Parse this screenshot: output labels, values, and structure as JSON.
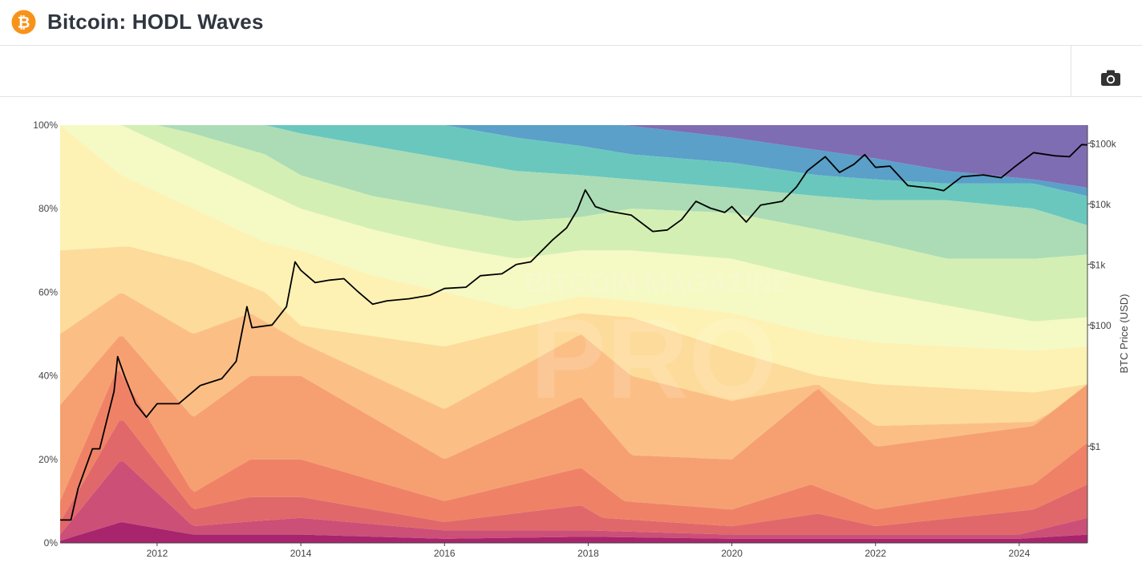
{
  "header": {
    "title": "Bitcoin: HODL Waves"
  },
  "toolbar": {
    "camera_icon": "camera-icon"
  },
  "colors": {
    "purple": "#7f6db4",
    "blue": "#5aa0c8",
    "teal": "#6ac7be",
    "seafoam": "#abdcb5",
    "lightgreen": "#d4efb3",
    "paleyellow": "#f5f9c4",
    "lightyellow": "#fdf2b4",
    "peach": "#fddb9a",
    "lightorange": "#fbbf86",
    "orange": "#f6a072",
    "salmon": "#ef8266",
    "red": "#e0686a",
    "pink": "#cc4f77",
    "magenta": "#a8246d",
    "price_line": "#000000"
  },
  "watermark": {
    "text_top": "BITCOIN MAGAZINE",
    "text_bottom": "PRO"
  },
  "chart_data": {
    "type": "area",
    "title": "Bitcoin: HODL Waves",
    "x_range": [
      2010.65,
      2024.95
    ],
    "y_left": {
      "range": [
        0,
        100
      ],
      "unit": "%"
    },
    "y_right": {
      "label": "BTC Price (USD)",
      "scale": "log",
      "range_log10": [
        -1.6,
        5.3
      ]
    },
    "x_ticks": [
      {
        "value": 2012,
        "label": "2012"
      },
      {
        "value": 2014,
        "label": "2014"
      },
      {
        "value": 2016,
        "label": "2016"
      },
      {
        "value": 2018,
        "label": "2018"
      },
      {
        "value": 2020,
        "label": "2020"
      },
      {
        "value": 2022,
        "label": "2022"
      },
      {
        "value": 2024,
        "label": "2024"
      }
    ],
    "y_left_ticks": [
      {
        "value": 0,
        "label": "0%"
      },
      {
        "value": 20,
        "label": "20%"
      },
      {
        "value": 40,
        "label": "40%"
      },
      {
        "value": 60,
        "label": "60%"
      },
      {
        "value": 80,
        "label": "80%"
      },
      {
        "value": 100,
        "label": "100%"
      }
    ],
    "y_right_ticks": [
      {
        "value": 1,
        "label": "$1"
      },
      {
        "value": 100,
        "label": "$100"
      },
      {
        "value": 1000,
        "label": "$1k"
      },
      {
        "value": 10000,
        "label": "$10k"
      },
      {
        "value": 100000,
        "label": "$100k"
      }
    ],
    "band_order_bottom_to_top": [
      "magenta",
      "pink",
      "red",
      "salmon",
      "orange",
      "lightorange",
      "peach",
      "lightyellow",
      "paleyellow",
      "lightgreen",
      "seafoam",
      "teal",
      "blue",
      "purple"
    ],
    "boundaries": [
      {
        "band": "magenta",
        "points": [
          [
            2010.65,
            0.5
          ],
          [
            2011.5,
            5
          ],
          [
            2012.5,
            2
          ],
          [
            2014,
            2
          ],
          [
            2016,
            1
          ],
          [
            2018,
            1.5
          ],
          [
            2020,
            1
          ],
          [
            2022,
            1
          ],
          [
            2024,
            1
          ],
          [
            2024.95,
            2
          ]
        ]
      },
      {
        "band": "pink",
        "points": [
          [
            2010.65,
            2
          ],
          [
            2011.5,
            20
          ],
          [
            2012.5,
            4
          ],
          [
            2013.2,
            5
          ],
          [
            2014,
            6
          ],
          [
            2016,
            3
          ],
          [
            2018,
            3
          ],
          [
            2020,
            2
          ],
          [
            2022,
            2
          ],
          [
            2024,
            2
          ],
          [
            2024.95,
            6
          ]
        ]
      },
      {
        "band": "red",
        "points": [
          [
            2010.65,
            5
          ],
          [
            2011.5,
            30
          ],
          [
            2012.5,
            8
          ],
          [
            2013.3,
            11
          ],
          [
            2014,
            11
          ],
          [
            2016,
            5
          ],
          [
            2017.9,
            9
          ],
          [
            2018.2,
            6
          ],
          [
            2020,
            4
          ],
          [
            2021.2,
            7
          ],
          [
            2022,
            4
          ],
          [
            2024.2,
            8
          ],
          [
            2024.95,
            14
          ]
        ]
      },
      {
        "band": "salmon",
        "points": [
          [
            2010.65,
            10
          ],
          [
            2011.45,
            42
          ],
          [
            2012.5,
            12
          ],
          [
            2013.3,
            20
          ],
          [
            2014,
            20
          ],
          [
            2016,
            10
          ],
          [
            2017.9,
            18
          ],
          [
            2018.5,
            10
          ],
          [
            2020,
            8
          ],
          [
            2021.1,
            14
          ],
          [
            2022,
            8
          ],
          [
            2024.2,
            14
          ],
          [
            2024.95,
            24
          ]
        ]
      },
      {
        "band": "orange",
        "points": [
          [
            2010.65,
            33
          ],
          [
            2011.5,
            50
          ],
          [
            2012.5,
            30
          ],
          [
            2013.3,
            40
          ],
          [
            2014,
            40
          ],
          [
            2016,
            20
          ],
          [
            2017.9,
            35
          ],
          [
            2018.6,
            21
          ],
          [
            2020,
            20
          ],
          [
            2021.2,
            37
          ],
          [
            2022,
            23
          ],
          [
            2024.2,
            28
          ],
          [
            2024.95,
            38
          ]
        ]
      },
      {
        "band": "lightorange",
        "points": [
          [
            2010.65,
            50
          ],
          [
            2011.5,
            60
          ],
          [
            2012.5,
            50
          ],
          [
            2013.3,
            55
          ],
          [
            2014,
            48
          ],
          [
            2016,
            32
          ],
          [
            2017.9,
            50
          ],
          [
            2018.6,
            40
          ],
          [
            2020,
            34
          ],
          [
            2021.2,
            38
          ],
          [
            2022,
            28
          ],
          [
            2024.2,
            29
          ],
          [
            2024.95,
            36
          ]
        ]
      },
      {
        "band": "peach",
        "points": [
          [
            2010.65,
            70
          ],
          [
            2011.6,
            71
          ],
          [
            2012.5,
            67
          ],
          [
            2013.5,
            60
          ],
          [
            2014,
            52
          ],
          [
            2016,
            47
          ],
          [
            2017.9,
            55
          ],
          [
            2018.6,
            54
          ],
          [
            2020,
            46
          ],
          [
            2021.2,
            40
          ],
          [
            2022,
            38
          ],
          [
            2024.2,
            36
          ],
          [
            2024.95,
            38
          ]
        ]
      },
      {
        "band": "lightyellow",
        "points": [
          [
            2010.65,
            100
          ],
          [
            2011.5,
            88
          ],
          [
            2012.5,
            80
          ],
          [
            2013.5,
            72
          ],
          [
            2014,
            70
          ],
          [
            2015,
            64
          ],
          [
            2016,
            60
          ],
          [
            2017,
            56
          ],
          [
            2017.9,
            59
          ],
          [
            2018.6,
            58
          ],
          [
            2020,
            55
          ],
          [
            2021.2,
            50
          ],
          [
            2022,
            48
          ],
          [
            2024.2,
            46
          ],
          [
            2024.95,
            47
          ]
        ]
      },
      {
        "band": "paleyellow",
        "points": [
          [
            2010.65,
            100
          ],
          [
            2011.5,
            100
          ],
          [
            2012.5,
            92
          ],
          [
            2013.5,
            84
          ],
          [
            2014,
            80
          ],
          [
            2015,
            75
          ],
          [
            2016,
            71
          ],
          [
            2017,
            68
          ],
          [
            2017.9,
            70
          ],
          [
            2018.6,
            70
          ],
          [
            2020,
            68
          ],
          [
            2021.2,
            63
          ],
          [
            2022,
            60
          ],
          [
            2024.2,
            53
          ],
          [
            2024.95,
            54
          ]
        ]
      },
      {
        "band": "lightgreen",
        "points": [
          [
            2010.65,
            100
          ],
          [
            2011.5,
            100
          ],
          [
            2012,
            100
          ],
          [
            2012.5,
            98
          ],
          [
            2013.5,
            93
          ],
          [
            2014,
            88
          ],
          [
            2015,
            83
          ],
          [
            2016,
            80
          ],
          [
            2017,
            77
          ],
          [
            2017.9,
            78
          ],
          [
            2018.6,
            80
          ],
          [
            2020,
            79
          ],
          [
            2021.2,
            75
          ],
          [
            2022,
            72
          ],
          [
            2023,
            68
          ],
          [
            2024.2,
            68
          ],
          [
            2024.95,
            69
          ]
        ]
      },
      {
        "band": "seafoam",
        "points": [
          [
            2010.65,
            100
          ],
          [
            2012,
            100
          ],
          [
            2013.5,
            100
          ],
          [
            2014,
            98
          ],
          [
            2015,
            95
          ],
          [
            2016,
            92
          ],
          [
            2017,
            89
          ],
          [
            2017.9,
            88
          ],
          [
            2018.6,
            87
          ],
          [
            2020,
            85
          ],
          [
            2021.2,
            83
          ],
          [
            2022,
            82
          ],
          [
            2023,
            82
          ],
          [
            2024.2,
            80
          ],
          [
            2024.95,
            76
          ]
        ]
      },
      {
        "band": "teal",
        "points": [
          [
            2010.65,
            100
          ],
          [
            2014,
            100
          ],
          [
            2015,
            100
          ],
          [
            2016,
            100
          ],
          [
            2017,
            97
          ],
          [
            2017.9,
            95
          ],
          [
            2018.6,
            93
          ],
          [
            2020,
            91
          ],
          [
            2021.2,
            88
          ],
          [
            2022,
            87
          ],
          [
            2023,
            86
          ],
          [
            2024.2,
            86
          ],
          [
            2024.95,
            83
          ]
        ]
      },
      {
        "band": "blue",
        "points": [
          [
            2010.65,
            100
          ],
          [
            2018.5,
            100
          ],
          [
            2019.5,
            98
          ],
          [
            2020,
            97
          ],
          [
            2021.2,
            94
          ],
          [
            2022,
            92
          ],
          [
            2023,
            89
          ],
          [
            2024.2,
            87
          ],
          [
            2024.95,
            85
          ]
        ]
      },
      {
        "band": "purple",
        "points": [
          [
            2010.65,
            100
          ],
          [
            2024.95,
            100
          ]
        ]
      }
    ],
    "price_series": {
      "name": "BTC Price (USD)",
      "points": [
        [
          2010.65,
          0.06
        ],
        [
          2010.8,
          0.06
        ],
        [
          2010.9,
          0.2
        ],
        [
          2011.1,
          0.9
        ],
        [
          2011.2,
          0.9
        ],
        [
          2011.4,
          8
        ],
        [
          2011.45,
          30
        ],
        [
          2011.55,
          14
        ],
        [
          2011.7,
          5
        ],
        [
          2011.85,
          3
        ],
        [
          2012.0,
          5
        ],
        [
          2012.3,
          5
        ],
        [
          2012.6,
          10
        ],
        [
          2012.9,
          13
        ],
        [
          2013.1,
          25
        ],
        [
          2013.25,
          200
        ],
        [
          2013.32,
          90
        ],
        [
          2013.6,
          100
        ],
        [
          2013.8,
          200
        ],
        [
          2013.92,
          1100
        ],
        [
          2014.0,
          800
        ],
        [
          2014.2,
          500
        ],
        [
          2014.4,
          550
        ],
        [
          2014.6,
          580
        ],
        [
          2014.8,
          350
        ],
        [
          2015.0,
          220
        ],
        [
          2015.2,
          250
        ],
        [
          2015.5,
          270
        ],
        [
          2015.8,
          310
        ],
        [
          2016.0,
          400
        ],
        [
          2016.3,
          420
        ],
        [
          2016.5,
          650
        ],
        [
          2016.8,
          700
        ],
        [
          2017.0,
          1000
        ],
        [
          2017.2,
          1100
        ],
        [
          2017.5,
          2500
        ],
        [
          2017.7,
          4000
        ],
        [
          2017.85,
          8000
        ],
        [
          2017.96,
          17000
        ],
        [
          2018.1,
          9000
        ],
        [
          2018.3,
          7500
        ],
        [
          2018.6,
          6500
        ],
        [
          2018.9,
          3500
        ],
        [
          2019.1,
          3700
        ],
        [
          2019.3,
          5500
        ],
        [
          2019.5,
          11000
        ],
        [
          2019.7,
          8500
        ],
        [
          2019.9,
          7200
        ],
        [
          2020.0,
          9000
        ],
        [
          2020.2,
          5000
        ],
        [
          2020.4,
          9500
        ],
        [
          2020.7,
          11000
        ],
        [
          2020.9,
          19000
        ],
        [
          2021.05,
          35000
        ],
        [
          2021.3,
          60000
        ],
        [
          2021.5,
          33000
        ],
        [
          2021.7,
          45000
        ],
        [
          2021.85,
          65000
        ],
        [
          2022.0,
          40000
        ],
        [
          2022.2,
          42000
        ],
        [
          2022.45,
          20000
        ],
        [
          2022.8,
          18000
        ],
        [
          2022.95,
          16500
        ],
        [
          2023.2,
          28000
        ],
        [
          2023.5,
          30000
        ],
        [
          2023.75,
          27000
        ],
        [
          2023.95,
          42000
        ],
        [
          2024.2,
          70000
        ],
        [
          2024.5,
          62000
        ],
        [
          2024.7,
          60000
        ],
        [
          2024.87,
          95000
        ],
        [
          2024.95,
          94000
        ]
      ]
    }
  }
}
